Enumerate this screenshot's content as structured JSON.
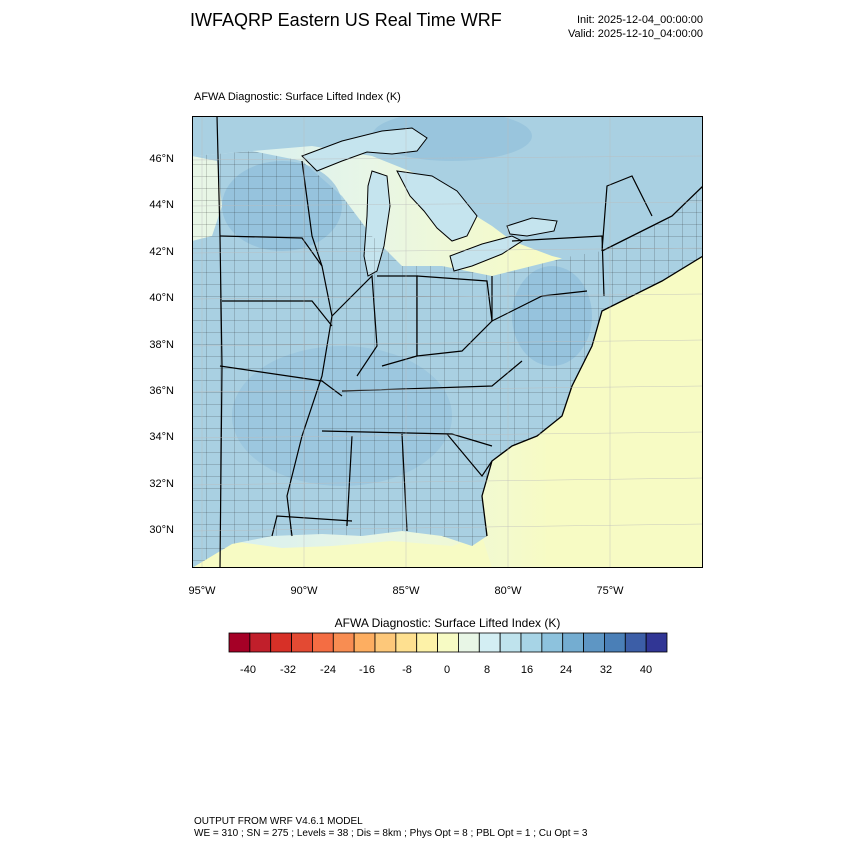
{
  "header": {
    "title": "IWFAQRP Eastern US Real Time WRF",
    "init": "Init: 2025-12-04_00:00:00",
    "valid": "Valid: 2025-12-10_04:00:00"
  },
  "plot": {
    "subtitle": "AFWA Diagnostic: Surface Lifted Index   (K)",
    "lat_labels": [
      "46°N",
      "44°N",
      "42°N",
      "40°N",
      "38°N",
      "36°N",
      "34°N",
      "32°N",
      "30°N"
    ],
    "lon_labels": [
      "95°W",
      "90°W",
      "85°W",
      "80°W",
      "75°W"
    ]
  },
  "colorbar": {
    "title": "AFWA Diagnostic: Surface Lifted Index  (K)",
    "tick_labels": [
      "-40",
      "-32",
      "-24",
      "-16",
      "-8",
      "0",
      "8",
      "16",
      "24",
      "32",
      "40"
    ],
    "colors": [
      "#a50026",
      "#c11f2b",
      "#d73027",
      "#e34a33",
      "#f46d43",
      "#f88d52",
      "#fdae61",
      "#fdc87a",
      "#fee090",
      "#fdf2a8",
      "#f7fbc4",
      "#e8f6e6",
      "#d3eef3",
      "#bfe3ed",
      "#a7d4e6",
      "#8dc2dd",
      "#74add1",
      "#5e96c4",
      "#4a7fb7",
      "#3c5ea7",
      "#313695"
    ]
  },
  "map_colors": {
    "land": "#a9d0e2",
    "land_dark": "#8fbedb",
    "lake": "#c5e4ee",
    "ocean_near": "#d3eef3",
    "ocean_mid": "#e8f6e6",
    "ocean_far": "#f7fbc4",
    "boundary": "#000000"
  },
  "footer": {
    "line1": "OUTPUT FROM WRF V4.6.1 MODEL",
    "line2": "WE = 310 ; SN = 275 ; Levels = 38 ; Dis = 8km ; Phys Opt = 8 ; PBL Opt = 1 ; Cu Opt = 3"
  }
}
